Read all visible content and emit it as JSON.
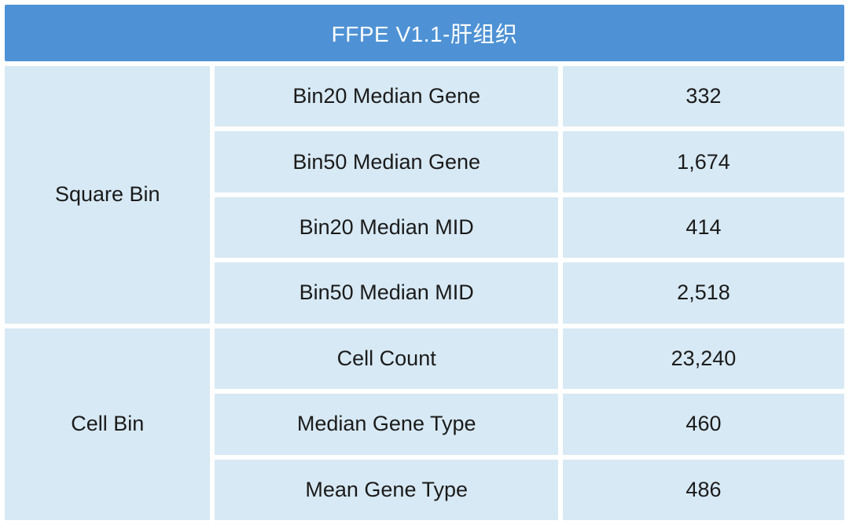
{
  "table": {
    "title": "FFPE V1.1-肝组织",
    "groups": [
      {
        "label": "Square Bin",
        "rows": [
          {
            "metric": "Bin20 Median Gene",
            "value": "332"
          },
          {
            "metric": "Bin50 Median Gene",
            "value": "1,674"
          },
          {
            "metric": "Bin20 Median MID",
            "value": "414"
          },
          {
            "metric": "Bin50 Median MID",
            "value": "2,518"
          }
        ]
      },
      {
        "label": "Cell Bin",
        "rows": [
          {
            "metric": "Cell Count",
            "value": "23,240"
          },
          {
            "metric": "Median Gene Type",
            "value": "460"
          },
          {
            "metric": "Mean Gene Type",
            "value": "486"
          }
        ]
      }
    ],
    "colors": {
      "header_bg": "#4e92d5",
      "cell_bg": "#d7e9f4",
      "gap": "#ffffff",
      "text": "#1b1b1b",
      "header_text": "#ffffff"
    }
  }
}
